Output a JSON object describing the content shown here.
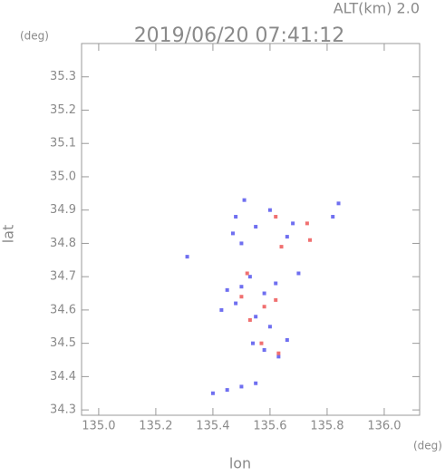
{
  "chart_data": {
    "type": "scatter",
    "title": "2019/06/20 07:41:12",
    "subtitle": "ALT(km) 2.0",
    "y_unit": "(deg)",
    "x_unit": "(deg)",
    "x_label": "lon",
    "y_label": "lat",
    "xlim": [
      134.94,
      136.124
    ],
    "ylim": [
      34.284,
      35.4
    ],
    "xticks": [
      {
        "value": 135.0,
        "label": "135.0"
      },
      135.2,
      135.4,
      135.6,
      135.8,
      {
        "value": 136.0,
        "label": "136.0"
      }
    ],
    "yticks": [
      34.3,
      34.4,
      34.5,
      34.6,
      34.7,
      34.8,
      34.9,
      {
        "value": 35.0,
        "label": "35.0"
      },
      35.1,
      35.2,
      35.3
    ],
    "series": [
      {
        "color": "#6f6ff0",
        "x": [
          135.51,
          135.48,
          135.47,
          135.5,
          135.55,
          135.6,
          135.66,
          135.68,
          135.82,
          135.84,
          135.31,
          135.45,
          135.5,
          135.53,
          135.58,
          135.62,
          135.7,
          135.48,
          135.55,
          135.6,
          135.54,
          135.58,
          135.63,
          135.66,
          135.43,
          135.4,
          135.45,
          135.5,
          135.55
        ],
        "y": [
          34.93,
          34.88,
          34.83,
          34.8,
          34.85,
          34.9,
          34.82,
          34.86,
          34.88,
          34.92,
          34.76,
          34.66,
          34.67,
          34.7,
          34.65,
          34.68,
          34.71,
          34.62,
          34.58,
          34.55,
          34.5,
          34.48,
          34.46,
          34.51,
          34.6,
          34.35,
          34.36,
          34.37,
          34.38
        ]
      },
      {
        "color": "#f07070",
        "x": [
          135.62,
          135.73,
          135.64,
          135.74,
          135.52,
          135.62,
          135.58,
          135.53,
          135.5,
          135.57,
          135.63
        ],
        "y": [
          34.88,
          34.86,
          34.79,
          34.81,
          34.71,
          34.63,
          34.61,
          34.57,
          34.64,
          34.5,
          34.47
        ]
      }
    ]
  }
}
